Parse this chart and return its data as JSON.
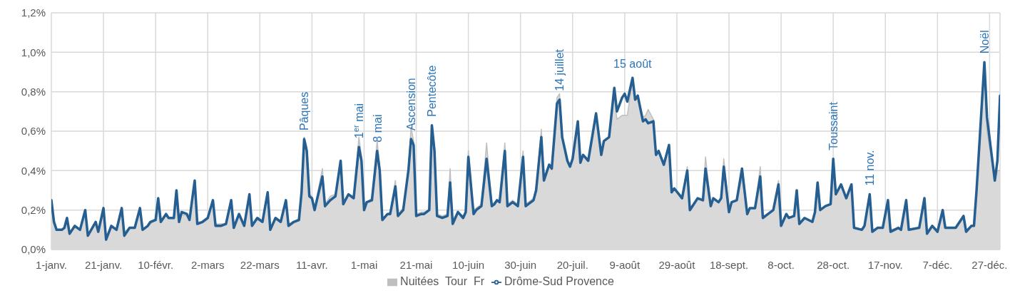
{
  "chart_data": {
    "type": "line",
    "xlim": [
      "--01-01",
      "--12-31"
    ],
    "xticks": [
      {
        "value": "--01-01",
        "label": "1-janv."
      },
      {
        "value": "--01-21",
        "label": "21-janv."
      },
      {
        "value": "--02-10",
        "label": "10-févr."
      },
      {
        "value": "--03-02",
        "label": "2-mars"
      },
      {
        "value": "--03-22",
        "label": "22-mars"
      },
      {
        "value": "--04-11",
        "label": "11-avr."
      },
      {
        "value": "--05-01",
        "label": "1-mai"
      },
      {
        "value": "--05-21",
        "label": "21-mai"
      },
      {
        "value": "--06-10",
        "label": "10-juin"
      },
      {
        "value": "--06-30",
        "label": "30-juin"
      },
      {
        "value": "--07-20",
        "label": "20-juil."
      },
      {
        "value": "--08-09",
        "label": "9-août"
      },
      {
        "value": "--08-29",
        "label": "29-août"
      },
      {
        "value": "--09-18",
        "label": "18-sept."
      },
      {
        "value": "--10-08",
        "label": "8-oct."
      },
      {
        "value": "--10-28",
        "label": "28-oct."
      },
      {
        "value": "--11-17",
        "label": "17-nov."
      },
      {
        "value": "--12-07",
        "label": "7-déc."
      },
      {
        "value": "--12-27",
        "label": "27-déc."
      }
    ],
    "ylim": [
      0,
      1.2
    ],
    "yticks": [
      {
        "value": 0,
        "label": "0,0%"
      },
      {
        "value": 0.2,
        "label": "0,2%"
      },
      {
        "value": 0.4,
        "label": "0,4%"
      },
      {
        "value": 0.6,
        "label": "0,6%"
      },
      {
        "value": 0.8,
        "label": "0,8%"
      },
      {
        "value": 1.0,
        "label": "1,0%"
      },
      {
        "value": 1.2,
        "label": "1,2%"
      }
    ],
    "grid": true,
    "legend": "bottom",
    "marker": "none",
    "x": [
      "--01-01",
      "--01-02",
      "--01-03",
      "--01-05",
      "--01-06",
      "--01-07",
      "--01-08",
      "--01-10",
      "--01-12",
      "--01-14",
      "--01-15",
      "--01-18",
      "--01-19",
      "--01-21",
      "--01-22",
      "--01-24",
      "--01-26",
      "--01-28",
      "--01-29",
      "--01-31",
      "--02-02",
      "--02-04",
      "--02-05",
      "--02-07",
      "--02-08",
      "--02-10",
      "--02-11",
      "--02-12",
      "--02-14",
      "--02-15",
      "--02-17",
      "--02-18",
      "--02-19",
      "--02-20",
      "--02-22",
      "--02-23",
      "--02-25",
      "--02-26",
      "--02-28",
      "--03-02",
      "--03-04",
      "--03-05",
      "--03-07",
      "--03-09",
      "--03-11",
      "--03-12",
      "--03-14",
      "--03-16",
      "--03-18",
      "--03-19",
      "--03-21",
      "--03-23",
      "--03-25",
      "--03-26",
      "--03-28",
      "--03-30",
      "--04-01",
      "--04-02",
      "--04-04",
      "--04-06",
      "--04-07",
      "--04-08",
      "--04-09",
      "--04-10",
      "--04-11",
      "--04-12",
      "--04-15",
      "--04-16",
      "--04-18",
      "--04-20",
      "--04-22",
      "--04-23",
      "--04-25",
      "--04-27",
      "--04-29",
      "--04-30",
      "--05-01",
      "--05-02",
      "--05-04",
      "--05-06",
      "--05-07",
      "--05-08",
      "--05-10",
      "--05-11",
      "--05-13",
      "--05-14",
      "--05-16",
      "--05-18",
      "--05-19",
      "--05-20",
      "--05-21",
      "--05-23",
      "--05-24",
      "--05-26",
      "--05-27",
      "--05-28",
      "--05-29",
      "--05-31",
      "--06-02",
      "--06-03",
      "--06-04",
      "--06-06",
      "--06-08",
      "--06-09",
      "--06-10",
      "--06-12",
      "--06-13",
      "--06-15",
      "--06-17",
      "--06-19",
      "--06-20",
      "--06-21",
      "--06-22",
      "--06-24",
      "--06-25",
      "--06-27",
      "--06-29",
      "--07-01",
      "--07-02",
      "--07-05",
      "--07-06",
      "--07-08",
      "--07-09",
      "--07-11",
      "--07-12",
      "--07-14",
      "--07-15",
      "--07-16",
      "--07-18",
      "--07-19",
      "--07-20",
      "--07-22",
      "--07-23",
      "--07-24",
      "--07-26",
      "--07-29",
      "--07-31",
      "--08-01",
      "--08-03",
      "--08-05",
      "--08-06",
      "--08-08",
      "--08-09",
      "--08-10",
      "--08-12",
      "--08-13",
      "--08-14",
      "--08-16",
      "--08-17",
      "--08-18",
      "--08-20",
      "--08-21",
      "--08-22",
      "--08-24",
      "--08-26",
      "--08-27",
      "--08-28",
      "--08-31",
      "--09-02",
      "--09-03",
      "--09-06",
      "--09-08",
      "--09-09",
      "--09-11",
      "--09-12",
      "--09-14",
      "--09-15",
      "--09-16",
      "--09-18",
      "--09-19",
      "--09-21",
      "--09-23",
      "--09-25",
      "--09-26",
      "--09-28",
      "--09-30",
      "--10-01",
      "--10-03",
      "--10-05",
      "--10-07",
      "--10-08",
      "--10-10",
      "--10-11",
      "--10-13",
      "--10-14",
      "--10-15",
      "--10-17",
      "--10-20",
      "--10-21",
      "--10-22",
      "--10-23",
      "--10-25",
      "--10-27",
      "--10-28",
      "--10-29",
      "--10-31",
      "--11-02",
      "--11-04",
      "--11-05",
      "--11-08",
      "--11-09",
      "--11-11",
      "--11-12",
      "--11-14",
      "--11-16",
      "--11-18",
      "--11-19",
      "--11-22",
      "--11-23",
      "--11-25",
      "--11-26",
      "--11-30",
      "--12-02",
      "--12-03",
      "--12-05",
      "--12-07",
      "--12-09",
      "--12-10",
      "--12-13",
      "--12-14",
      "--12-17",
      "--12-18",
      "--12-20",
      "--12-21",
      "--12-22",
      "--12-25",
      "--12-26",
      "--12-29",
      "--12-30",
      "--12-31"
    ],
    "series": [
      {
        "name": "Nuitées  Tour  Fr",
        "type": "area",
        "color": "#d9d9d9",
        "values": [
          0.22,
          0.13,
          0.1,
          0.1,
          0.11,
          0.14,
          0.09,
          0.11,
          0.1,
          0.18,
          0.08,
          0.13,
          0.09,
          0.19,
          0.07,
          0.11,
          0.1,
          0.19,
          0.09,
          0.11,
          0.11,
          0.19,
          0.1,
          0.12,
          0.13,
          0.15,
          0.24,
          0.14,
          0.17,
          0.16,
          0.16,
          0.27,
          0.15,
          0.18,
          0.17,
          0.15,
          0.32,
          0.14,
          0.14,
          0.16,
          0.23,
          0.13,
          0.13,
          0.13,
          0.23,
          0.12,
          0.17,
          0.13,
          0.27,
          0.12,
          0.15,
          0.14,
          0.27,
          0.11,
          0.16,
          0.14,
          0.24,
          0.13,
          0.14,
          0.15,
          0.28,
          0.57,
          0.52,
          0.28,
          0.27,
          0.21,
          0.41,
          0.23,
          0.27,
          0.28,
          0.44,
          0.24,
          0.28,
          0.27,
          0.57,
          0.47,
          0.21,
          0.24,
          0.26,
          0.55,
          0.42,
          0.16,
          0.18,
          0.19,
          0.35,
          0.18,
          0.21,
          0.41,
          0.62,
          0.55,
          0.18,
          0.19,
          0.19,
          0.2,
          0.62,
          0.5,
          0.18,
          0.17,
          0.18,
          0.41,
          0.15,
          0.19,
          0.17,
          0.2,
          0.5,
          0.2,
          0.21,
          0.23,
          0.54,
          0.23,
          0.24,
          0.25,
          0.25,
          0.54,
          0.23,
          0.25,
          0.23,
          0.5,
          0.23,
          0.26,
          0.31,
          0.61,
          0.36,
          0.43,
          0.42,
          0.77,
          0.79,
          0.57,
          0.45,
          0.43,
          0.46,
          0.65,
          0.45,
          0.48,
          0.46,
          0.68,
          0.5,
          0.55,
          0.57,
          0.78,
          0.66,
          0.68,
          0.68,
          0.68,
          0.86,
          0.76,
          0.78,
          0.67,
          0.68,
          0.71,
          0.66,
          0.49,
          0.5,
          0.44,
          0.53,
          0.3,
          0.31,
          0.27,
          0.42,
          0.21,
          0.26,
          0.25,
          0.47,
          0.23,
          0.26,
          0.24,
          0.26,
          0.46,
          0.2,
          0.24,
          0.25,
          0.36,
          0.19,
          0.21,
          0.21,
          0.42,
          0.17,
          0.18,
          0.2,
          0.35,
          0.13,
          0.18,
          0.16,
          0.17,
          0.3,
          0.14,
          0.16,
          0.14,
          0.19,
          0.33,
          0.2,
          0.22,
          0.23,
          0.45,
          0.28,
          0.32,
          0.26,
          0.32,
          0.11,
          0.1,
          0.12,
          0.27,
          0.1,
          0.11,
          0.11,
          0.24,
          0.1,
          0.11,
          0.1,
          0.24,
          0.1,
          0.11,
          0.25,
          0.09,
          0.12,
          0.1,
          0.19,
          0.11,
          0.11,
          0.11,
          0.16,
          0.1,
          0.12,
          0.12,
          0.28,
          0.93,
          0.6,
          0.35,
          0.4,
          0.4
        ]
      },
      {
        "name": "Drôme-Sud Provence",
        "type": "line",
        "color": "#255e91",
        "values": [
          0.25,
          0.14,
          0.1,
          0.1,
          0.11,
          0.16,
          0.08,
          0.12,
          0.1,
          0.2,
          0.07,
          0.14,
          0.09,
          0.21,
          0.05,
          0.12,
          0.1,
          0.21,
          0.07,
          0.11,
          0.11,
          0.21,
          0.1,
          0.12,
          0.14,
          0.15,
          0.26,
          0.14,
          0.18,
          0.16,
          0.16,
          0.3,
          0.14,
          0.19,
          0.18,
          0.15,
          0.35,
          0.13,
          0.14,
          0.16,
          0.25,
          0.12,
          0.12,
          0.13,
          0.25,
          0.11,
          0.18,
          0.12,
          0.28,
          0.12,
          0.16,
          0.14,
          0.29,
          0.1,
          0.16,
          0.14,
          0.25,
          0.12,
          0.14,
          0.15,
          0.29,
          0.56,
          0.5,
          0.27,
          0.26,
          0.2,
          0.37,
          0.22,
          0.25,
          0.27,
          0.45,
          0.23,
          0.28,
          0.26,
          0.52,
          0.45,
          0.2,
          0.24,
          0.25,
          0.5,
          0.4,
          0.15,
          0.18,
          0.18,
          0.32,
          0.17,
          0.2,
          0.4,
          0.56,
          0.53,
          0.17,
          0.18,
          0.18,
          0.2,
          0.63,
          0.5,
          0.17,
          0.16,
          0.17,
          0.34,
          0.13,
          0.19,
          0.16,
          0.19,
          0.47,
          0.18,
          0.2,
          0.22,
          0.46,
          0.22,
          0.23,
          0.25,
          0.24,
          0.5,
          0.22,
          0.24,
          0.22,
          0.47,
          0.22,
          0.25,
          0.3,
          0.57,
          0.35,
          0.43,
          0.41,
          0.74,
          0.76,
          0.57,
          0.45,
          0.42,
          0.46,
          0.65,
          0.44,
          0.48,
          0.45,
          0.69,
          0.48,
          0.55,
          0.57,
          0.82,
          0.7,
          0.77,
          0.79,
          0.75,
          0.87,
          0.76,
          0.78,
          0.65,
          0.66,
          0.64,
          0.65,
          0.48,
          0.5,
          0.43,
          0.53,
          0.29,
          0.31,
          0.26,
          0.4,
          0.2,
          0.26,
          0.25,
          0.41,
          0.22,
          0.26,
          0.24,
          0.26,
          0.42,
          0.19,
          0.24,
          0.25,
          0.41,
          0.18,
          0.21,
          0.21,
          0.37,
          0.16,
          0.18,
          0.2,
          0.33,
          0.12,
          0.18,
          0.16,
          0.17,
          0.3,
          0.13,
          0.16,
          0.14,
          0.19,
          0.34,
          0.2,
          0.22,
          0.23,
          0.46,
          0.28,
          0.33,
          0.26,
          0.33,
          0.11,
          0.1,
          0.12,
          0.28,
          0.09,
          0.11,
          0.11,
          0.25,
          0.09,
          0.11,
          0.1,
          0.25,
          0.1,
          0.11,
          0.26,
          0.08,
          0.12,
          0.09,
          0.2,
          0.11,
          0.11,
          0.11,
          0.17,
          0.09,
          0.12,
          0.12,
          0.3,
          0.95,
          0.67,
          0.35,
          0.45,
          0.78
        ]
      }
    ],
    "annotations": [
      {
        "text": "Pâques",
        "x": "--04-08",
        "y": 0.56
      },
      {
        "text": "1$^{er}$ mai",
        "x": "--04-29",
        "y": 0.52
      },
      {
        "text": "8 mai",
        "x": "--05-06",
        "y": 0.5
      },
      {
        "text": "Ascension",
        "x": "--05-19",
        "y": 0.56
      },
      {
        "text": "Pentecôte",
        "x": "--05-27",
        "y": 0.63
      },
      {
        "text": "14 juillet",
        "x": "--07-15",
        "y": 0.76
      },
      {
        "text": "15 août",
        "x": "--08-12",
        "y": 0.87
      },
      {
        "text": "Toussaint",
        "x": "--10-28",
        "y": 0.46
      },
      {
        "text": "11 nov.",
        "x": "--11-11",
        "y": 0.28
      },
      {
        "text": "Noël",
        "x": "--12-25",
        "y": 0.95
      }
    ]
  }
}
